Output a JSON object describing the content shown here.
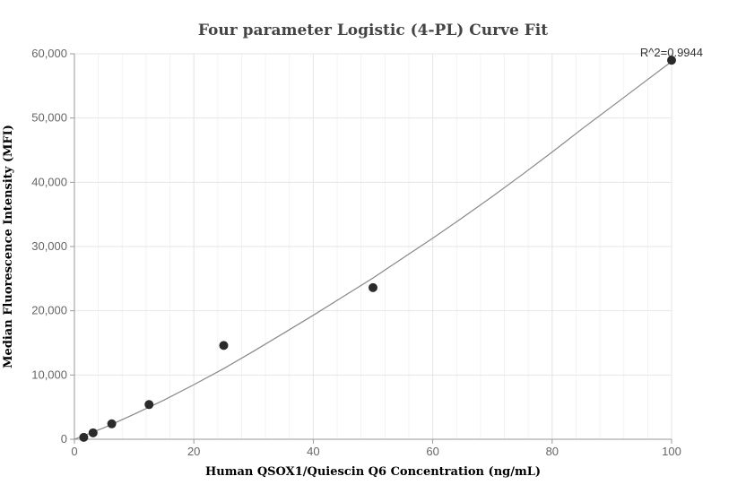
{
  "chart_data": {
    "type": "scatter",
    "title": "Four parameter Logistic (4-PL) Curve Fit",
    "xlabel": "Human QSOX1/Quiescin Q6 Concentration (ng/mL)",
    "ylabel": "Median Fluorescence Intensity (MFI)",
    "xlim": [
      0,
      100
    ],
    "ylim": [
      0,
      60000
    ],
    "x_ticks": [
      0,
      20,
      40,
      60,
      80,
      100
    ],
    "x_tick_labels": [
      "0",
      "20",
      "40",
      "60",
      "80",
      "100"
    ],
    "y_ticks": [
      0,
      10000,
      20000,
      30000,
      40000,
      50000,
      60000
    ],
    "y_tick_labels": [
      "0",
      "10,000",
      "20,000",
      "30,000",
      "40,000",
      "50,000",
      "60,000"
    ],
    "grid": true,
    "annotation": "R^2=0.9944",
    "points": [
      {
        "x": 1.5625,
        "y": 300
      },
      {
        "x": 3.125,
        "y": 1000
      },
      {
        "x": 6.25,
        "y": 2400
      },
      {
        "x": 12.5,
        "y": 5400
      },
      {
        "x": 25,
        "y": 14600
      },
      {
        "x": 50,
        "y": 23600
      },
      {
        "x": 100,
        "y": 59000
      }
    ],
    "fit_curve": {
      "type": "4PL",
      "x": [
        0,
        5,
        10,
        15,
        20,
        25,
        30,
        35,
        40,
        45,
        50,
        55,
        60,
        65,
        70,
        75,
        80,
        85,
        90,
        95,
        100
      ],
      "y": [
        0,
        1800,
        3900,
        6100,
        8500,
        11000,
        13700,
        16500,
        19300,
        22200,
        25100,
        28200,
        31300,
        34500,
        37800,
        41200,
        44700,
        48300,
        51800,
        55300,
        58800
      ]
    },
    "colors": {
      "point": "#2b2b2b",
      "curve": "#888888",
      "grid": "#e6e6e6",
      "axis": "#999999"
    }
  }
}
